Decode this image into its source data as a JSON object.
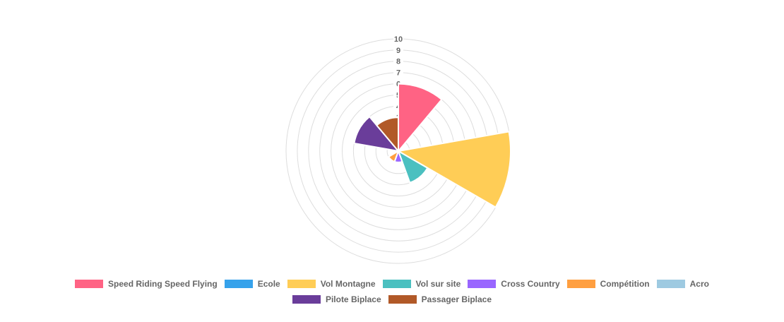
{
  "chart_data": {
    "type": "polarArea",
    "categories": [
      "Speed Riding Speed Flying",
      "Ecole",
      "Vol Montagne",
      "Vol sur site",
      "Cross Country",
      "Compétition",
      "Acro",
      "Pilote Biplace",
      "Passager Biplace"
    ],
    "values": [
      6,
      0,
      10,
      3,
      1,
      1,
      0,
      4,
      3
    ],
    "colors": [
      "#ff6384",
      "#36a2eb",
      "#ffcd56",
      "#4bc0c0",
      "#9966ff",
      "#ff9f40",
      "#9ecae1",
      "#6a3d9a",
      "#b15928"
    ],
    "ylim": [
      0,
      10
    ],
    "yticks": [
      1,
      2,
      3,
      4,
      5,
      6,
      7,
      8,
      9,
      10
    ],
    "grid": true,
    "legend": "bottom"
  }
}
